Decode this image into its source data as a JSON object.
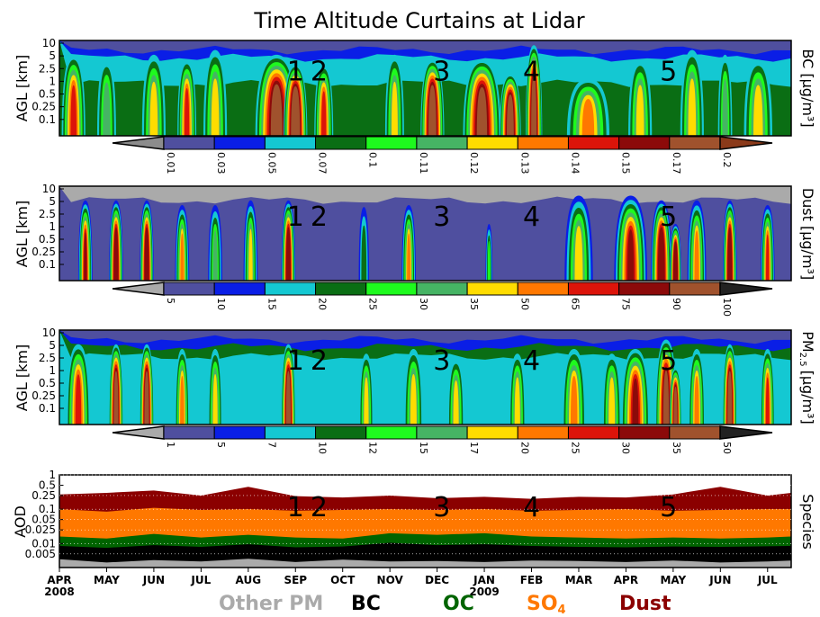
{
  "title": "Time Altitude Curtains at Lidar",
  "colors": {
    "palette": [
      "#aaaaaa",
      "#4f4f9f",
      "#0a1ee6",
      "#14c8d2",
      "#0a6e14",
      "#1efa1e",
      "#46b464",
      "#ffdc00",
      "#ff7800",
      "#dc140a",
      "#8c0a0a",
      "#a0522d"
    ],
    "species": {
      "other_pm": "#aaaaaa",
      "bc": "#000000",
      "oc": "#006400",
      "so4": "#ff7800",
      "dust": "#8b0000"
    }
  },
  "altitude_ticks": [
    "10",
    "5",
    "2.5",
    "1",
    "0.5",
    "0.25",
    "0.1"
  ],
  "time_axis": {
    "months": [
      "APR",
      "MAY",
      "JUN",
      "JUL",
      "AUG",
      "SEP",
      "OCT",
      "NOV",
      "DEC",
      "JAN",
      "FEB",
      "MAR",
      "APR",
      "MAY",
      "JUN",
      "JUL"
    ],
    "year_labels": [
      {
        "index": 0,
        "text": "2008"
      },
      {
        "index": 9,
        "text": "2009"
      }
    ]
  },
  "event_labels": [
    "1",
    "2",
    "3",
    "4",
    "5"
  ],
  "event_positions_month": [
    5.0,
    5.5,
    8.1,
    10.0,
    12.9
  ],
  "chart_data": [
    {
      "type": "heatmap",
      "panel": "bc",
      "ylabel": "AGL [km]",
      "right_label": "BC [μg/m³]",
      "yticks": [
        "10",
        "5",
        "2.5",
        "1",
        "0.5",
        "0.25",
        "0.1"
      ],
      "colorbar_ticks": [
        "0.01",
        "0.03",
        "0.05",
        "0.07",
        "0.1",
        "0.11",
        "0.12",
        "0.13",
        "0.14",
        "0.15",
        "0.17",
        "0.2"
      ],
      "plumes": [
        {
          "x": 0.3,
          "w": 0.5,
          "z": 0.5,
          "h": 0.85
        },
        {
          "x": 1.0,
          "w": 0.4,
          "z": 0.3,
          "h": 0.8
        },
        {
          "x": 2.0,
          "w": 0.5,
          "z": 0.4,
          "h": 0.85
        },
        {
          "x": 2.7,
          "w": 0.4,
          "z": 0.5,
          "h": 0.8
        },
        {
          "x": 3.3,
          "w": 0.5,
          "z": 0.4,
          "h": 0.9
        },
        {
          "x": 4.6,
          "w": 0.9,
          "z": 0.82,
          "h": 0.85
        },
        {
          "x": 5.0,
          "w": 0.5,
          "z": 0.98,
          "h": 0.75
        },
        {
          "x": 5.6,
          "w": 0.4,
          "z": 0.55,
          "h": 0.75
        },
        {
          "x": 7.1,
          "w": 0.4,
          "z": 0.4,
          "h": 0.85
        },
        {
          "x": 7.9,
          "w": 0.5,
          "z": 0.95,
          "h": 0.8
        },
        {
          "x": 8.95,
          "w": 0.8,
          "z": 0.8,
          "h": 0.8
        },
        {
          "x": 9.55,
          "w": 0.45,
          "z": 0.88,
          "h": 0.65
        },
        {
          "x": 10.05,
          "w": 0.35,
          "z": 0.9,
          "h": 0.95
        },
        {
          "x": 11.2,
          "w": 0.9,
          "z": 0.42,
          "h": 0.6
        },
        {
          "x": 12.3,
          "w": 0.5,
          "z": 0.4,
          "h": 0.8
        },
        {
          "x": 13.4,
          "w": 0.5,
          "z": 0.4,
          "h": 0.9
        },
        {
          "x": 14.1,
          "w": 0.3,
          "z": 0.3,
          "h": 0.85
        },
        {
          "x": 14.8,
          "w": 0.6,
          "z": 0.35,
          "h": 0.8
        }
      ]
    },
    {
      "type": "heatmap",
      "panel": "dust",
      "ylabel": "AGL [km]",
      "right_label": "Dust [μg/m³]",
      "yticks": [
        "10",
        "5",
        "2.5",
        "1",
        "0.5",
        "0.25",
        "0.1"
      ],
      "colorbar_ticks": [
        "5",
        "10",
        "15",
        "20",
        "25",
        "30",
        "35",
        "50",
        "65",
        "75",
        "90",
        "100"
      ],
      "plumes": [
        {
          "x": 0.55,
          "w": 0.3,
          "z": 0.72,
          "h": 0.85
        },
        {
          "x": 1.2,
          "w": 0.3,
          "z": 0.88,
          "h": 0.85
        },
        {
          "x": 1.85,
          "w": 0.3,
          "z": 0.88,
          "h": 0.85
        },
        {
          "x": 2.6,
          "w": 0.3,
          "z": 0.5,
          "h": 0.8
        },
        {
          "x": 3.3,
          "w": 0.3,
          "z": 0.4,
          "h": 0.8
        },
        {
          "x": 4.05,
          "w": 0.3,
          "z": 0.45,
          "h": 0.85
        },
        {
          "x": 4.85,
          "w": 0.3,
          "z": 0.88,
          "h": 0.85
        },
        {
          "x": 6.45,
          "w": 0.22,
          "z": 0.22,
          "h": 0.78
        },
        {
          "x": 7.4,
          "w": 0.3,
          "z": 0.55,
          "h": 0.8
        },
        {
          "x": 9.1,
          "w": 0.15,
          "z": 0.25,
          "h": 0.6
        },
        {
          "x": 11.0,
          "w": 0.6,
          "z": 0.45,
          "h": 0.9
        },
        {
          "x": 12.1,
          "w": 0.7,
          "z": 0.72,
          "h": 0.9
        },
        {
          "x": 12.75,
          "w": 0.45,
          "z": 0.88,
          "h": 0.85
        },
        {
          "x": 13.05,
          "w": 0.25,
          "z": 0.98,
          "h": 0.6
        },
        {
          "x": 13.5,
          "w": 0.4,
          "z": 0.5,
          "h": 0.85
        },
        {
          "x": 14.2,
          "w": 0.3,
          "z": 0.95,
          "h": 0.85
        },
        {
          "x": 15.0,
          "w": 0.3,
          "z": 0.65,
          "h": 0.8
        }
      ]
    },
    {
      "type": "heatmap",
      "panel": "pm25",
      "ylabel": "AGL [km]",
      "right_label": "PM2.5 [μg/m³]",
      "right_label_main": "PM",
      "right_label_sub": "2.5",
      "right_label_unit": "[μg/m³]",
      "yticks": [
        "10",
        "5",
        "2.5",
        "1",
        "0.5",
        "0.25",
        "0.1"
      ],
      "colorbar_ticks": [
        "1",
        "5",
        "7",
        "10",
        "12",
        "15",
        "17",
        "20",
        "25",
        "30",
        "35",
        "50"
      ],
      "plumes": [
        {
          "x": 0.4,
          "w": 0.5,
          "z": 0.5,
          "h": 0.85
        },
        {
          "x": 1.2,
          "w": 0.3,
          "z": 0.88,
          "h": 0.85
        },
        {
          "x": 1.85,
          "w": 0.3,
          "z": 0.88,
          "h": 0.85
        },
        {
          "x": 2.6,
          "w": 0.3,
          "z": 0.45,
          "h": 0.8
        },
        {
          "x": 3.3,
          "w": 0.3,
          "z": 0.35,
          "h": 0.8
        },
        {
          "x": 4.85,
          "w": 0.3,
          "z": 0.88,
          "h": 0.85
        },
        {
          "x": 6.5,
          "w": 0.3,
          "z": 0.38,
          "h": 0.75
        },
        {
          "x": 7.5,
          "w": 0.4,
          "z": 0.38,
          "h": 0.8
        },
        {
          "x": 8.4,
          "w": 0.35,
          "z": 0.35,
          "h": 0.7
        },
        {
          "x": 9.7,
          "w": 0.35,
          "z": 0.35,
          "h": 0.75
        },
        {
          "x": 10.9,
          "w": 0.5,
          "z": 0.45,
          "h": 0.8
        },
        {
          "x": 11.7,
          "w": 0.4,
          "z": 0.4,
          "h": 0.75
        },
        {
          "x": 12.2,
          "w": 0.6,
          "z": 0.6,
          "h": 0.8
        },
        {
          "x": 12.85,
          "w": 0.45,
          "z": 0.82,
          "h": 0.9
        },
        {
          "x": 13.05,
          "w": 0.25,
          "z": 0.9,
          "h": 0.6
        },
        {
          "x": 13.5,
          "w": 0.35,
          "z": 0.45,
          "h": 0.8
        },
        {
          "x": 14.2,
          "w": 0.3,
          "z": 0.95,
          "h": 0.85
        },
        {
          "x": 15.0,
          "w": 0.3,
          "z": 0.55,
          "h": 0.8
        }
      ]
    },
    {
      "type": "area",
      "panel": "aod",
      "ylabel": "AOD",
      "right_label": "Species",
      "yticks": [
        "1",
        "0.5",
        "0.25",
        "0.1",
        "0.05",
        "0.025",
        "0.01",
        "0.005"
      ],
      "ytick_values": [
        1,
        0.5,
        0.25,
        0.1,
        0.05,
        0.025,
        0.01,
        0.005
      ],
      "ylim": [
        0.002,
        1
      ],
      "yscale": "log",
      "stack_order": [
        "Other PM",
        "BC",
        "OC",
        "SO4",
        "Dust"
      ],
      "series_tops": {
        "other_pm": {
          "x": [
            0,
            1,
            2,
            3,
            4,
            5,
            6,
            7,
            8,
            9,
            10,
            11,
            12,
            13,
            14,
            15,
            15.5
          ],
          "y": [
            0.0035,
            0.0028,
            0.0033,
            0.003,
            0.0036,
            0.0029,
            0.0034,
            0.003,
            0.0031,
            0.0029,
            0.0032,
            0.0031,
            0.0029,
            0.0032,
            0.0028,
            0.003,
            0.0032
          ]
        },
        "bc": {
          "x": [
            0,
            1,
            2,
            3,
            4,
            5,
            6,
            7,
            8,
            9,
            10,
            11,
            12,
            13,
            14,
            15,
            15.5
          ],
          "y": [
            0.0085,
            0.0075,
            0.009,
            0.008,
            0.0095,
            0.0078,
            0.0082,
            0.0105,
            0.009,
            0.0095,
            0.0085,
            0.008,
            0.0078,
            0.0082,
            0.008,
            0.0083,
            0.0085
          ]
        },
        "oc": {
          "x": [
            0,
            1,
            2,
            3,
            4,
            5,
            6,
            7,
            8,
            9,
            10,
            11,
            12,
            13,
            14,
            15,
            15.5
          ],
          "y": [
            0.016,
            0.014,
            0.019,
            0.015,
            0.018,
            0.015,
            0.014,
            0.02,
            0.018,
            0.02,
            0.016,
            0.015,
            0.014,
            0.015,
            0.014,
            0.015,
            0.016
          ]
        },
        "so4": {
          "x": [
            0,
            1,
            2,
            3,
            4,
            5,
            6,
            7,
            8,
            9,
            10,
            11,
            12,
            13,
            14,
            15,
            15.5
          ],
          "y": [
            0.1,
            0.085,
            0.11,
            0.095,
            0.1,
            0.09,
            0.095,
            0.1,
            0.095,
            0.1,
            0.09,
            0.095,
            0.1,
            0.09,
            0.095,
            0.1,
            0.1
          ]
        },
        "dust": {
          "x": [
            0,
            1,
            2,
            3,
            4,
            5,
            6,
            7,
            8,
            9,
            10,
            11,
            12,
            13,
            14,
            15,
            15.5
          ],
          "y": [
            0.27,
            0.3,
            0.35,
            0.25,
            0.45,
            0.24,
            0.22,
            0.25,
            0.21,
            0.23,
            0.2,
            0.23,
            0.22,
            0.27,
            0.45,
            0.25,
            0.3
          ]
        }
      }
    }
  ],
  "legend": {
    "items": [
      {
        "label": "Other PM",
        "color": "#aaaaaa"
      },
      {
        "label": "BC",
        "color": "#000000"
      },
      {
        "label": "OC",
        "color": "#006400"
      },
      {
        "label": "SO",
        "sub": "4",
        "color": "#ff7800"
      },
      {
        "label": "Dust",
        "color": "#8b0000"
      }
    ]
  }
}
